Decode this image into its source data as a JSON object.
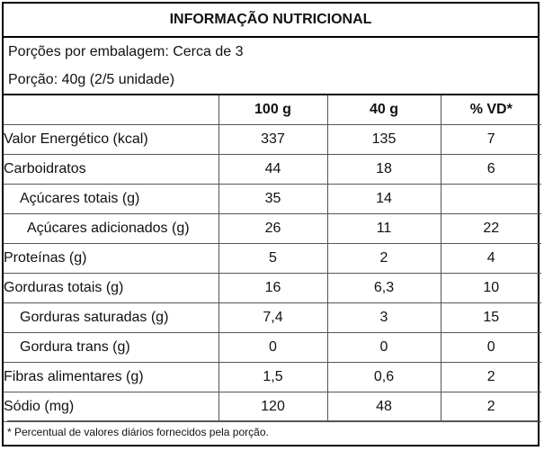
{
  "title": "INFORMAÇÃO NUTRICIONAL",
  "portions_per_package": "Porções por embalagem: Cerca de 3",
  "portion": "Porção: 40g (2/5 unidade)",
  "columns": [
    "",
    "100 g",
    "40 g",
    "% VD*"
  ],
  "rows": [
    {
      "label": "Valor Energético (kcal)",
      "v100": "337",
      "v40": "135",
      "vd": "7"
    },
    {
      "label": "Carboidratos",
      "v100": "44",
      "v40": "18",
      "vd": "6"
    },
    {
      "label": "Açúcares totais (g)",
      "v100": "35",
      "v40": "14",
      "vd": ""
    },
    {
      "label": "Açúcares adicionados (g)",
      "v100": "26",
      "v40": "11",
      "vd": "22"
    },
    {
      "label": "Proteínas (g)",
      "v100": "5",
      "v40": "2",
      "vd": "4"
    },
    {
      "label": "Gorduras totais (g)",
      "v100": "16",
      "v40": "6,3",
      "vd": "10"
    },
    {
      "label": "Gorduras saturadas (g)",
      "v100": "7,4",
      "v40": "3",
      "vd": "15"
    },
    {
      "label": "Gordura trans (g)",
      "v100": "0",
      "v40": "0",
      "vd": "0"
    },
    {
      "label": "Fibras alimentares (g)",
      "v100": "1,5",
      "v40": "0,6",
      "vd": "2"
    },
    {
      "label": "Sódio (mg)",
      "v100": "120",
      "v40": "48",
      "vd": "2"
    }
  ],
  "footnote": "* Percentual de valores diários fornecidos pela porção."
}
